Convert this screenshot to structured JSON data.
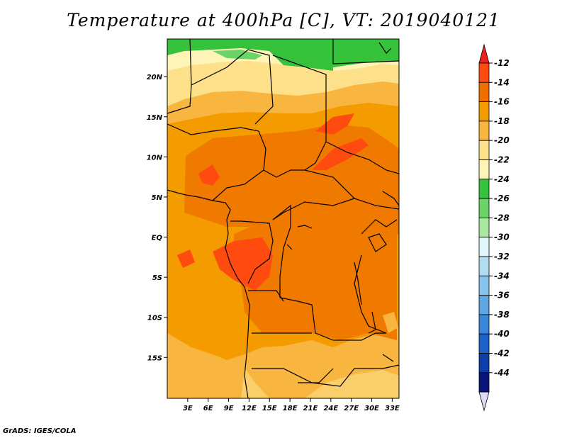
{
  "title": "Temperature at 400hPa [C], VT: 2019040121",
  "footer": "GrADS: IGES/COLA",
  "map": {
    "lat_labels": [
      {
        "lat": 20,
        "label": "20N"
      },
      {
        "lat": 15,
        "label": "15N"
      },
      {
        "lat": 10,
        "label": "10N"
      },
      {
        "lat": 5,
        "label": "5N"
      },
      {
        "lat": 0,
        "label": "EQ"
      },
      {
        "lat": -5,
        "label": "5S"
      },
      {
        "lat": -10,
        "label": "10S"
      },
      {
        "lat": -15,
        "label": "15S"
      }
    ],
    "lon_labels": [
      {
        "lon": 3,
        "label": "3E"
      },
      {
        "lon": 6,
        "label": "6E"
      },
      {
        "lon": 9,
        "label": "9E"
      },
      {
        "lon": 12,
        "label": "12E"
      },
      {
        "lon": 15,
        "label": "15E"
      },
      {
        "lon": 18,
        "label": "18E"
      },
      {
        "lon": 21,
        "label": "21E"
      },
      {
        "lon": 24,
        "label": "24E"
      },
      {
        "lon": 27,
        "label": "27E"
      },
      {
        "lon": 30,
        "label": "30E"
      },
      {
        "lon": 33,
        "label": "33E"
      }
    ]
  },
  "colorbar": {
    "levels": [
      {
        "label": "-12",
        "color": "#ff4a10"
      },
      {
        "label": "-14",
        "color": "#f06e00"
      },
      {
        "label": "-16",
        "color": "#f49b00"
      },
      {
        "label": "-18",
        "color": "#f8b540"
      },
      {
        "label": "-20",
        "color": "#fde08a"
      },
      {
        "label": "-22",
        "color": "#fff4b8"
      },
      {
        "label": "-24",
        "color": "#36c23a"
      },
      {
        "label": "-26",
        "color": "#6ad468"
      },
      {
        "label": "-28",
        "color": "#a8e8a0"
      },
      {
        "label": "-30",
        "color": "#e0f6fa"
      },
      {
        "label": "-32",
        "color": "#b2dcf2"
      },
      {
        "label": "-34",
        "color": "#88c4ec"
      },
      {
        "label": "-36",
        "color": "#5ea6e4"
      },
      {
        "label": "-38",
        "color": "#3a86da"
      },
      {
        "label": "-40",
        "color": "#1c62c8"
      },
      {
        "label": "-42",
        "color": "#0a40a8"
      },
      {
        "label": "-44",
        "color": "#0a1478"
      }
    ],
    "top_triangle_color": "#ee2020",
    "bottom_triangle_color": "#dcdcf4"
  }
}
